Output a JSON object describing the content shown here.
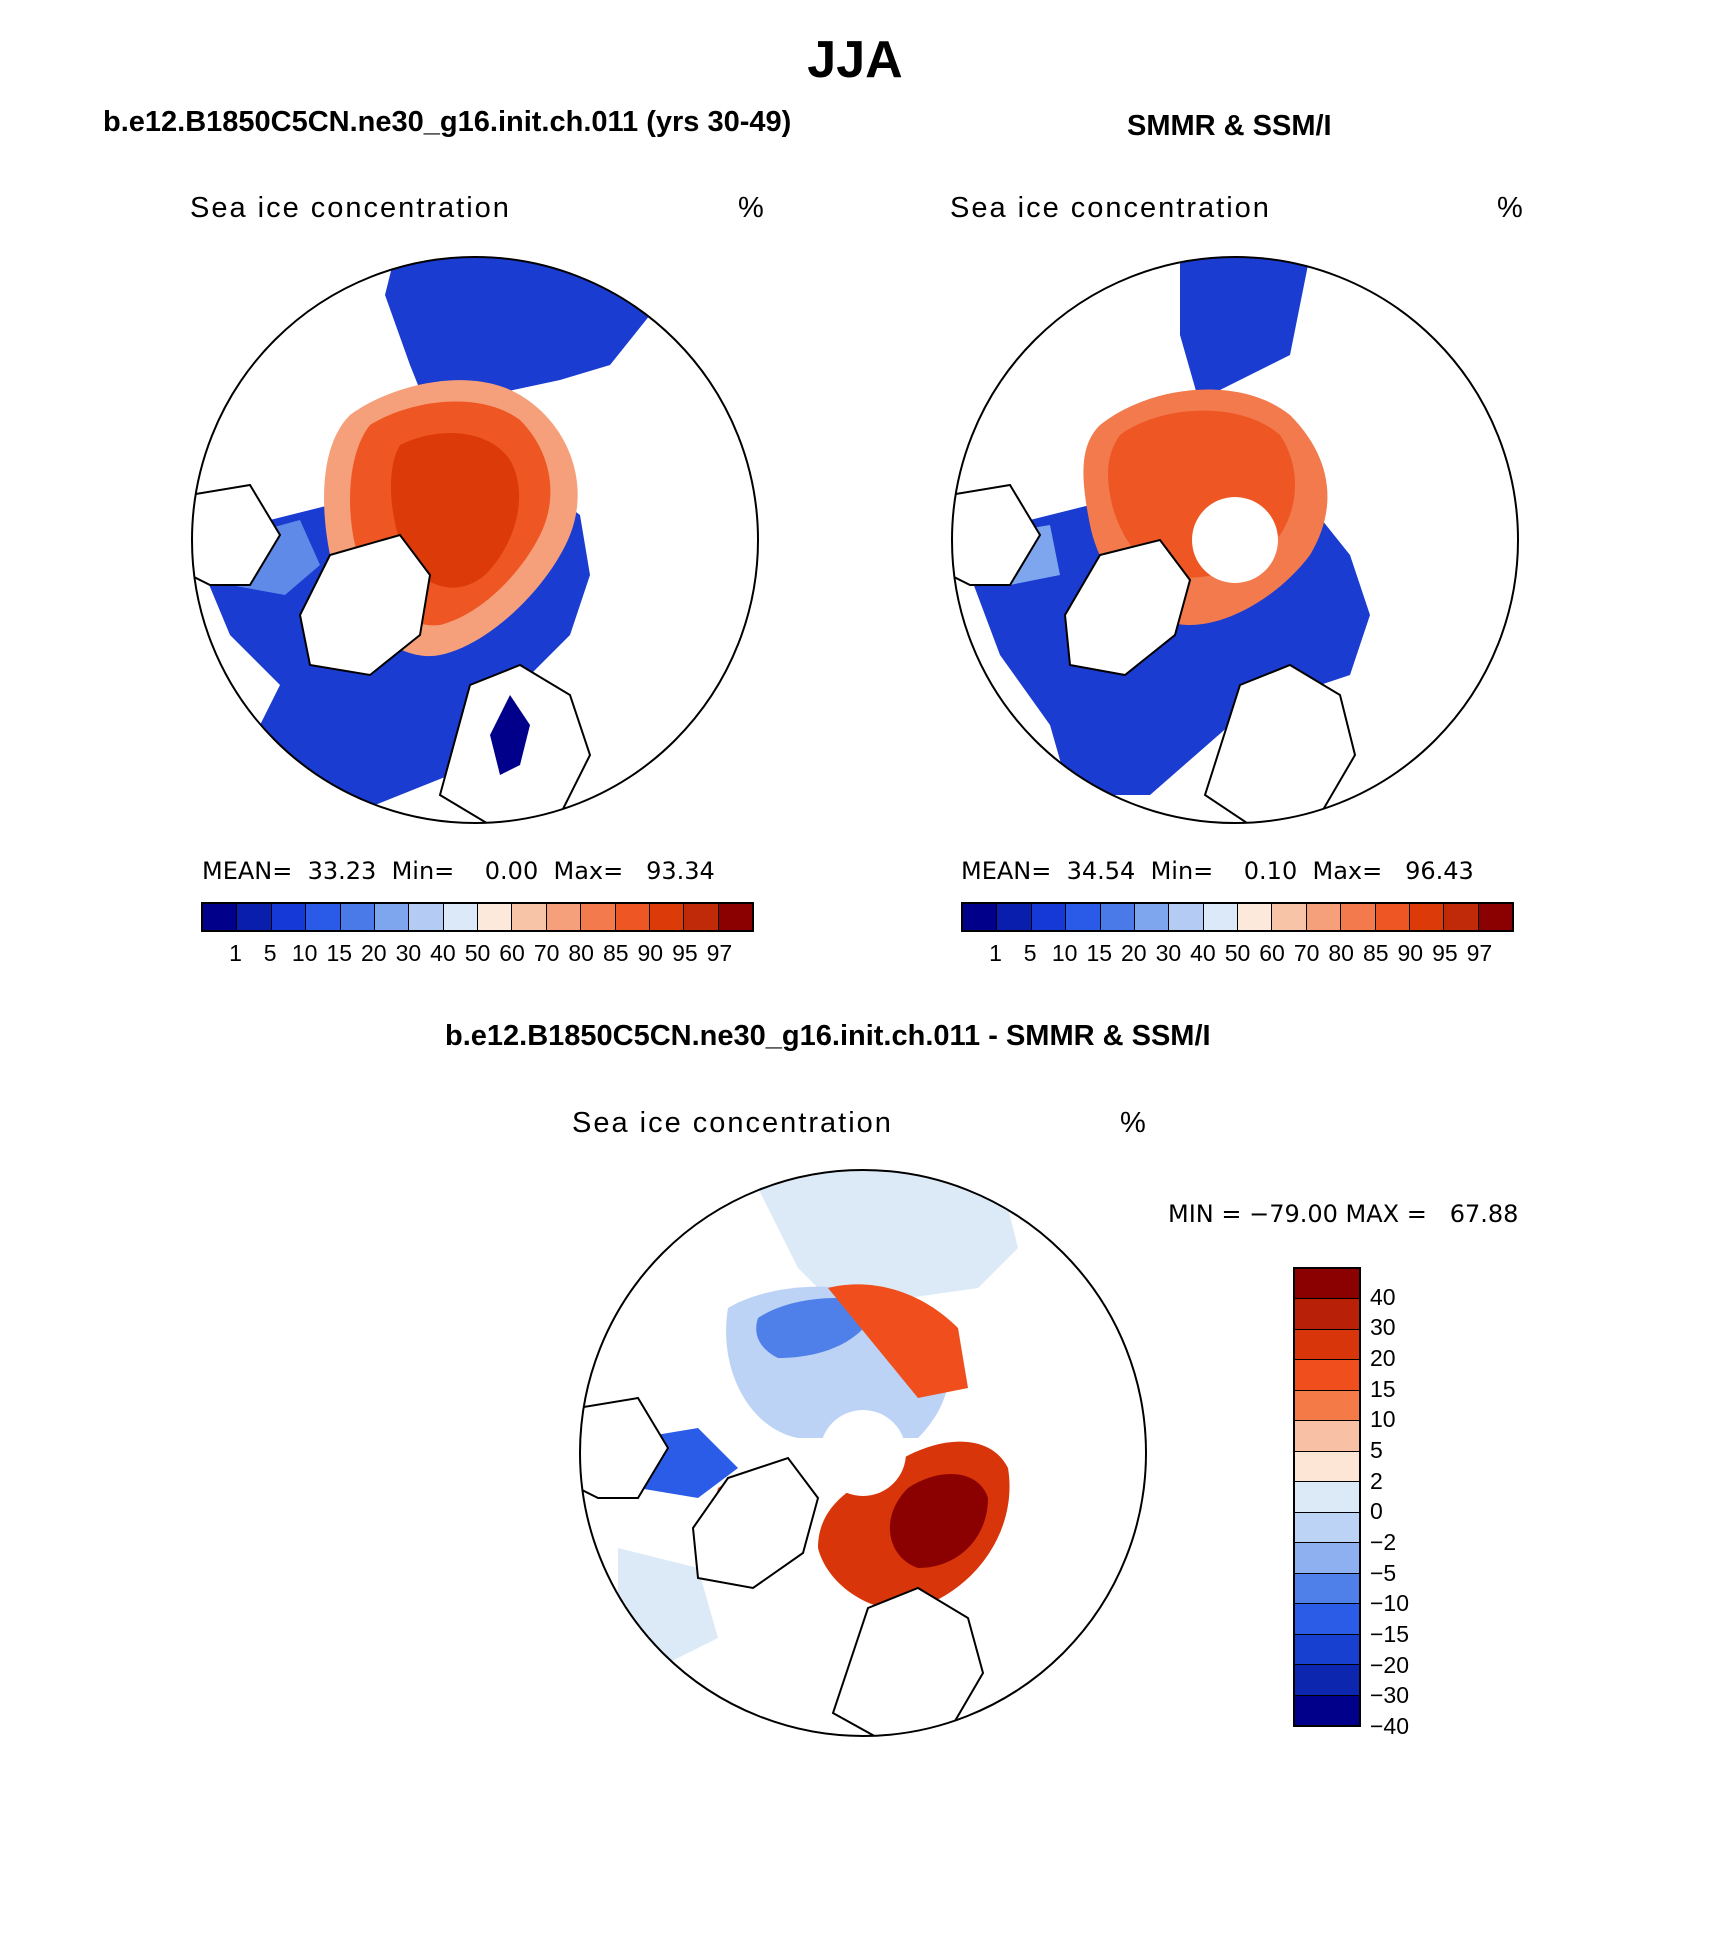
{
  "page_title": "JJA",
  "panels": [
    {
      "title": "b.e12.B1850C5CN.ne30_g16.init.ch.011 (yrs 30-49)",
      "variable": "Sea ice concentration",
      "unit": "%",
      "stats": "MEAN=  33.23  Min=    0.00  Max=   93.34",
      "pole_hole": false
    },
    {
      "title": "SMMR & SSM/I",
      "variable": "Sea ice concentration",
      "unit": "%",
      "stats": "MEAN=  34.54  Min=    0.10  Max=   96.43",
      "pole_hole": true
    },
    {
      "title": "b.e12.B1850C5CN.ne30_g16.init.ch.011 - SMMR & SSM/I",
      "variable": "Sea ice concentration",
      "unit": "%",
      "stats": "MIN = −79.00 MAX =   67.88",
      "pole_hole": true
    }
  ],
  "abs_colorbar": {
    "levels": [
      "1",
      "5",
      "10",
      "15",
      "20",
      "30",
      "40",
      "50",
      "60",
      "70",
      "80",
      "85",
      "90",
      "95",
      "97"
    ],
    "colors": [
      "#00008b",
      "#0a1eae",
      "#1439d6",
      "#2a5be8",
      "#4a7ae8",
      "#7ea6ee",
      "#b4ccf4",
      "#dbe9f8",
      "#fde9dc",
      "#f8c4a8",
      "#f5a07a",
      "#f27a4c",
      "#ee5624",
      "#dd3a0a",
      "#c02a08",
      "#8b0000"
    ]
  },
  "diff_colorbar": {
    "levels": [
      "40",
      "30",
      "20",
      "15",
      "10",
      "5",
      "2",
      "0",
      "−2",
      "−5",
      "−10",
      "−15",
      "−20",
      "−30",
      "−40"
    ],
    "colors": [
      "#8b0000",
      "#b82008",
      "#d8360a",
      "#f04e1c",
      "#f47a48",
      "#f8c0a4",
      "#fde6d6",
      "#dceaf8",
      "#bcd3f6",
      "#8eb0f0",
      "#4f80ea",
      "#2b5ce8",
      "#1840d0",
      "#0c26b0",
      "#00008b"
    ]
  }
}
